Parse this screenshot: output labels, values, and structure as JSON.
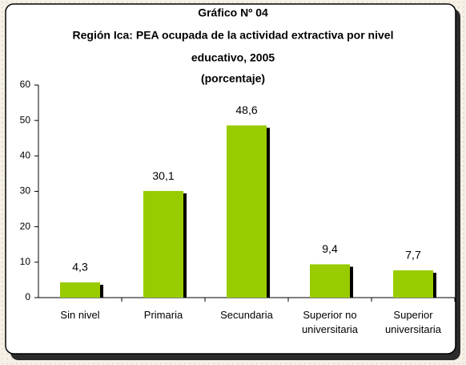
{
  "chart_data": {
    "type": "bar",
    "title": "Gráfico Nº 04",
    "subtitle": [
      "Región Ica: PEA ocupada de la actividad extractiva por nivel",
      "educativo, 2005"
    ],
    "unit_label": "(porcentaje)",
    "categories": [
      "Sin nivel",
      "Primaria",
      "Secundaria",
      "Superior no universitaria",
      "Superior universitaria"
    ],
    "values": [
      4.3,
      30.1,
      48.6,
      9.4,
      7.7
    ],
    "value_labels": [
      "4,3",
      "30,1",
      "48,6",
      "9,4",
      "7,7"
    ],
    "color": "#99cc00",
    "ylim": [
      0,
      60
    ],
    "yticks": [
      0,
      10,
      20,
      30,
      40,
      50,
      60
    ],
    "grid": false
  }
}
